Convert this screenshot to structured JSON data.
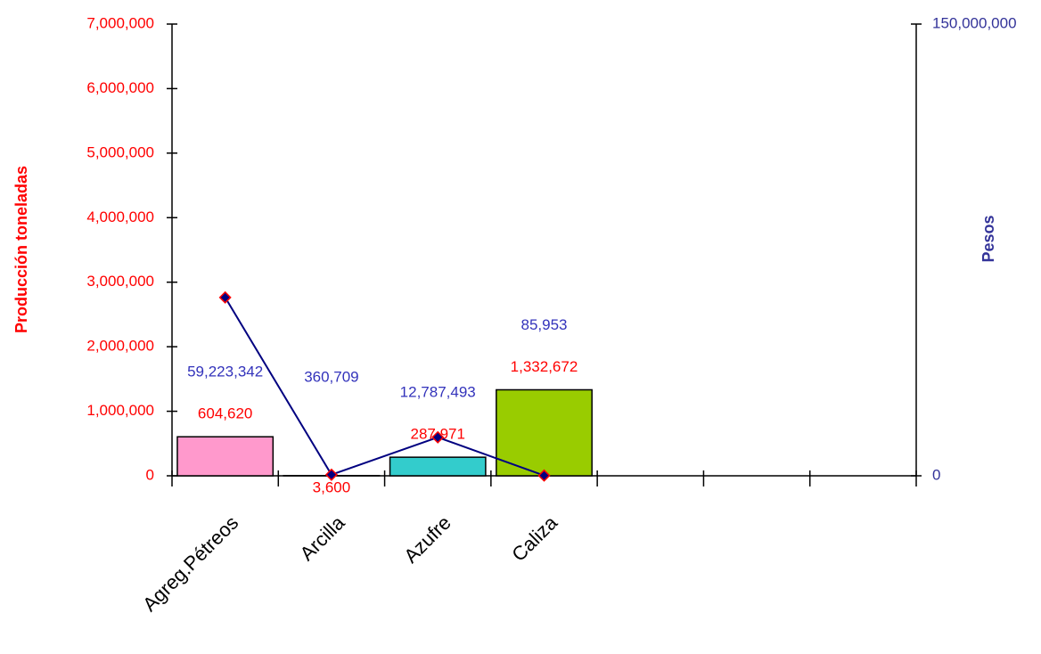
{
  "chart_data": {
    "type": "bar_line",
    "y_label": "Producción toneladas",
    "y2_label": "Pesos",
    "categories": [
      "Agreg.Pétreos",
      "Arcilla",
      "Azufre",
      "Caliza",
      null,
      null,
      null
    ],
    "series": [
      {
        "name": "Producción toneladas",
        "type": "bar",
        "colors": [
          "#ff99cc",
          "#9999ff",
          "#33cccc",
          "#99cc00",
          null,
          null,
          null
        ],
        "values": [
          604620,
          3600,
          287971,
          1332672,
          null,
          null,
          null
        ],
        "value_labels": [
          "604,620",
          "3,600",
          "287,971",
          "1,332,672",
          null,
          null,
          null
        ]
      },
      {
        "name": "Pesos",
        "type": "line",
        "axis": "y2",
        "color": "#000080",
        "values": [
          59223342,
          360709,
          12787493,
          85953,
          null,
          null,
          null
        ],
        "value_labels": [
          "59,223,342",
          "360,709",
          "12,787,493",
          "85,953",
          null,
          null,
          null
        ]
      }
    ],
    "ylim": [
      0,
      7000000
    ],
    "yticks": [
      0,
      {
        "value": 1000000,
        "label": "1,000,000"
      },
      {
        "value": 2000000,
        "label": "2,000,000"
      },
      {
        "value": 3000000,
        "label": "3,000,000"
      },
      {
        "value": 4000000,
        "label": "4,000,000"
      },
      {
        "value": 5000000,
        "label": "5,000,000"
      },
      {
        "value": 6000000,
        "label": "6,000,000"
      },
      {
        "value": 7000000,
        "label": "7,000,000"
      }
    ],
    "y2lim": [
      0,
      150000000
    ],
    "y2ticks": [
      0,
      {
        "value": 150000000,
        "label": "150,000,000"
      }
    ]
  }
}
